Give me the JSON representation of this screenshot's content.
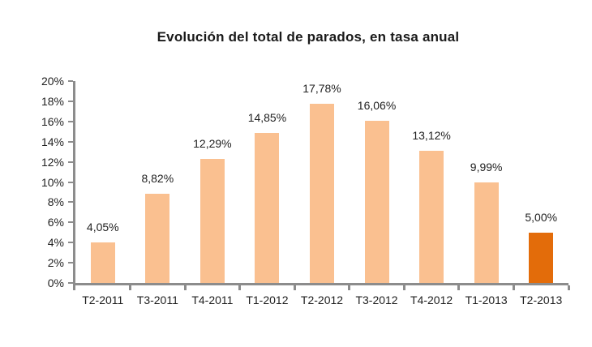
{
  "chart_data": {
    "type": "bar",
    "title": "Evolución del total de parados, en tasa anual",
    "categories": [
      "T2-2011",
      "T3-2011",
      "T4-2011",
      "T1-2012",
      "T2-2012",
      "T3-2012",
      "T4-2012",
      "T1-2013",
      "T2-2013"
    ],
    "values": [
      4.05,
      8.82,
      12.29,
      14.85,
      17.78,
      16.06,
      13.12,
      9.99,
      5.0
    ],
    "data_labels": [
      "4,05%",
      "8,82%",
      "12,29%",
      "14,85%",
      "17,78%",
      "16,06%",
      "13,12%",
      "9,99%",
      "5,00%"
    ],
    "xlabel": "",
    "ylabel": "",
    "ylim": [
      0,
      20
    ],
    "ytick_step": 2,
    "ytick_labels": [
      "0%",
      "2%",
      "4%",
      "6%",
      "8%",
      "10%",
      "12%",
      "14%",
      "16%",
      "18%",
      "20%"
    ],
    "grid": false,
    "legend_position": "none",
    "highlight_index": 8,
    "colors": {
      "bar": "#FAC090",
      "bar_highlight": "#E36C0A",
      "axis": "#8C8C8C",
      "text": "#1F1F1F",
      "title_text": "#1A1A1A"
    }
  }
}
